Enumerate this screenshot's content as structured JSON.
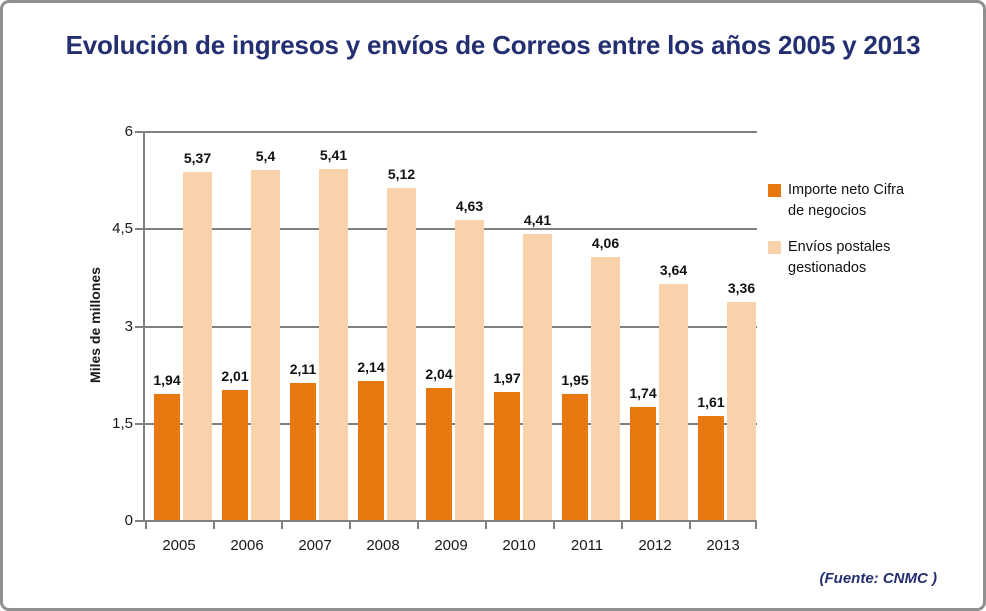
{
  "title": "Evolución de ingresos y envíos de Correos entre los años 2005 y 2013",
  "source": "(Fuente: CNMC )",
  "colors": {
    "title_navy": "#232f70",
    "orange": "#e6780e",
    "peach": "#f9d2ac",
    "grid_gray": "#7f7f7f",
    "text_black": "#111111"
  },
  "chart_data": {
    "type": "bar",
    "title": "Evolución de ingresos y envíos de Correos entre los años 2005 y 2013",
    "categories": [
      "2005",
      "2006",
      "2007",
      "2008",
      "2009",
      "2010",
      "2011",
      "2012",
      "2013"
    ],
    "series": [
      {
        "name": "Importe neto Cifra de negocios",
        "color": "#e6780e",
        "values": [
          1.94,
          2.01,
          2.11,
          2.14,
          2.04,
          1.97,
          1.95,
          1.74,
          1.61
        ],
        "labels": [
          "1,94",
          "2,01",
          "2,11",
          "2,14",
          "2,04",
          "1,97",
          "1,95",
          "1,74",
          "1,61"
        ]
      },
      {
        "name": "Envíos postales gestionados",
        "color": "#f9d2ac",
        "values": [
          5.37,
          5.4,
          5.41,
          5.12,
          4.63,
          4.41,
          4.06,
          3.64,
          3.36
        ],
        "labels": [
          "5,37",
          "5,4",
          "5,41",
          "5,12",
          "4,63",
          "4,41",
          "4,06",
          "3,64",
          "3,36"
        ]
      }
    ],
    "xlabel": "",
    "ylabel": "Miles de millones",
    "ylim": [
      0,
      6
    ],
    "yticks": [
      {
        "value": 0,
        "label": "0"
      },
      {
        "value": 1.5,
        "label": "1,5"
      },
      {
        "value": 3,
        "label": "3"
      },
      {
        "value": 4.5,
        "label": "4,5"
      },
      {
        "value": 6,
        "label": "6"
      }
    ],
    "grid": true,
    "legend_position": "right",
    "legend": [
      {
        "series": 0,
        "lines": [
          "Importe neto Cifra",
          "de negocios"
        ]
      },
      {
        "series": 1,
        "lines": [
          "Envíos postales",
          "gestionados"
        ]
      }
    ]
  }
}
